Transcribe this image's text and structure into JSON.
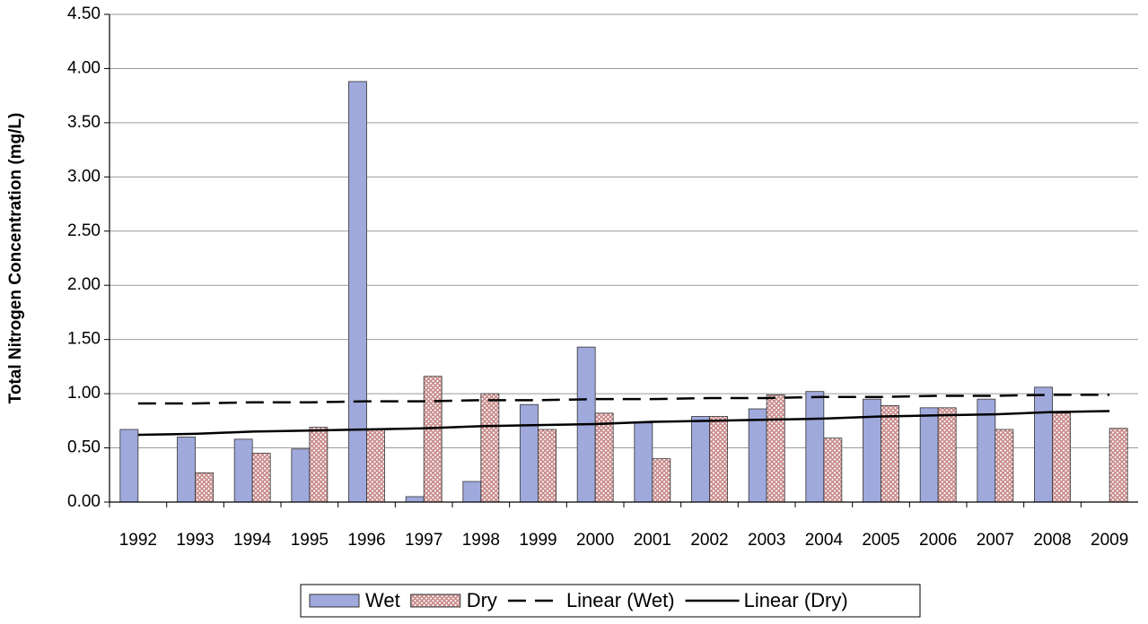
{
  "chart_data": {
    "type": "bar",
    "y_label": "Total Nitrogen Concentration (mg/L)",
    "categories": [
      "1992",
      "1993",
      "1994",
      "1995",
      "1996",
      "1997",
      "1998",
      "1999",
      "2000",
      "2001",
      "2002",
      "2003",
      "2004",
      "2005",
      "2006",
      "2007",
      "2008",
      "2009"
    ],
    "series": [
      {
        "name": "Wet",
        "type": "bar",
        "color": "#9fa9dc",
        "values": [
          0.67,
          0.6,
          0.58,
          0.49,
          3.88,
          0.05,
          0.19,
          0.9,
          1.43,
          0.73,
          0.79,
          0.86,
          1.02,
          0.95,
          0.87,
          0.95,
          1.06,
          null
        ]
      },
      {
        "name": "Dry",
        "type": "bar",
        "color": "#c98a8a",
        "pattern": "crosshatch",
        "values": [
          null,
          0.27,
          0.45,
          0.69,
          0.67,
          1.16,
          1.0,
          0.67,
          0.82,
          0.4,
          0.79,
          0.99,
          0.59,
          0.89,
          0.87,
          0.67,
          0.82,
          0.68
        ]
      },
      {
        "name": "Linear (Wet)",
        "type": "line",
        "color": "#000000",
        "dash": "dashed",
        "values": [
          0.91,
          0.91,
          0.92,
          0.92,
          0.93,
          0.93,
          0.94,
          0.94,
          0.95,
          0.95,
          0.96,
          0.96,
          0.97,
          0.97,
          0.98,
          0.98,
          0.99,
          0.99
        ]
      },
      {
        "name": "Linear (Dry)",
        "type": "line",
        "color": "#000000",
        "dash": "solid",
        "values": [
          0.62,
          0.63,
          0.65,
          0.66,
          0.67,
          0.68,
          0.7,
          0.71,
          0.72,
          0.74,
          0.75,
          0.76,
          0.77,
          0.79,
          0.8,
          0.81,
          0.83,
          0.84
        ]
      }
    ],
    "ylim": [
      0,
      4.5
    ],
    "yticks": [
      {
        "value": 0,
        "label": "0.00"
      },
      {
        "value": 0.5,
        "label": "0.50"
      },
      {
        "value": 1,
        "label": "1.00"
      },
      {
        "value": 1.5,
        "label": "1.50"
      },
      {
        "value": 2,
        "label": "2.00"
      },
      {
        "value": 2.5,
        "label": "2.50"
      },
      {
        "value": 3,
        "label": "3.00"
      },
      {
        "value": 3.5,
        "label": "3.50"
      },
      {
        "value": 4,
        "label": "4.00"
      },
      {
        "value": 4.5,
        "label": "4.50"
      }
    ],
    "grid": true,
    "legend": "bottom"
  }
}
